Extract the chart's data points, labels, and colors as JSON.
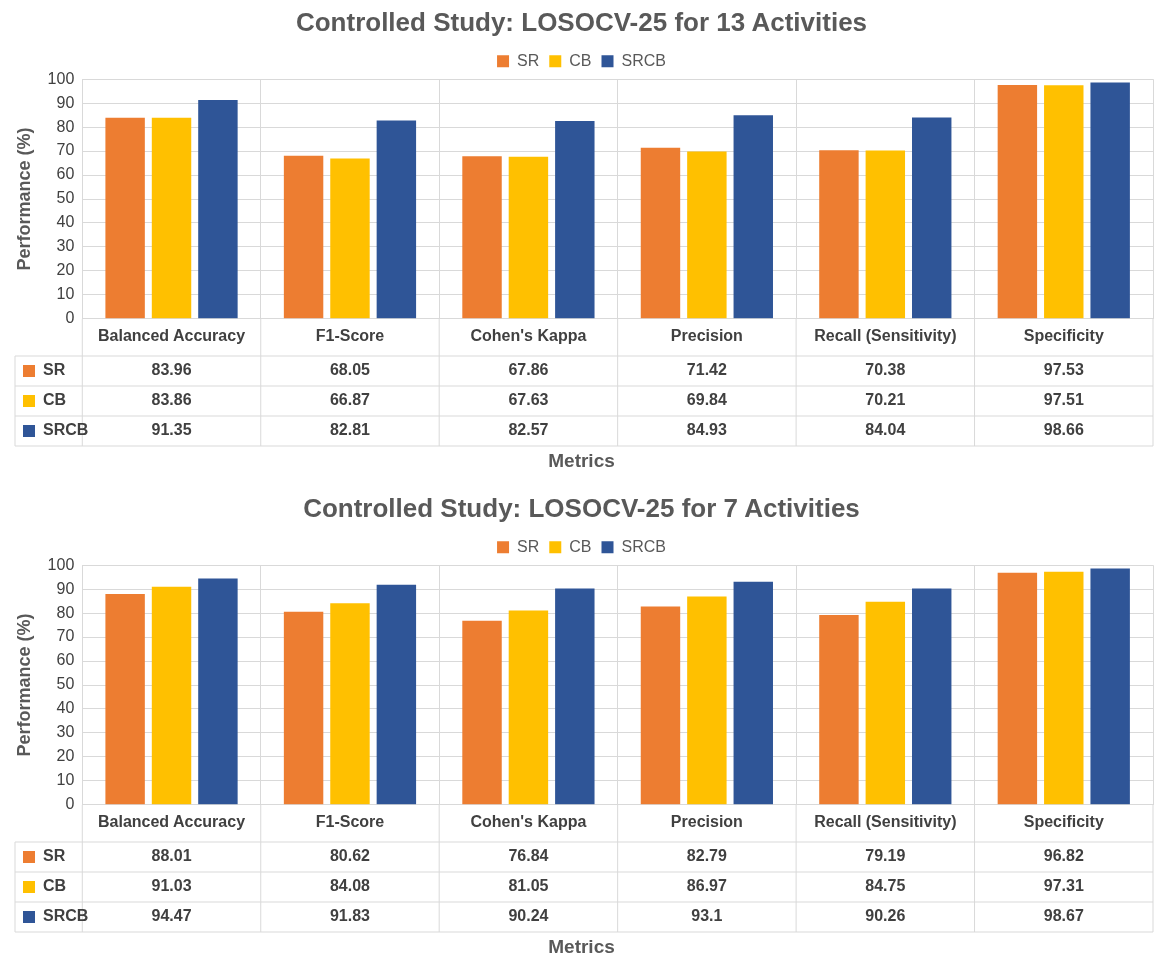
{
  "chart_data": [
    {
      "type": "bar",
      "title": "Controlled Study: LOSOCV-25 for 13 Activities",
      "xlabel": "Metrics",
      "ylabel": "Performance (%)",
      "categories": [
        "Balanced Accuracy",
        "F1-Score",
        "Cohen's Kappa",
        "Precision",
        "Recall (Sensitivity)",
        "Specificity"
      ],
      "series": [
        {
          "name": "SR",
          "color": "#ed7d31",
          "values": [
            83.96,
            68.05,
            67.86,
            71.42,
            70.38,
            97.53
          ]
        },
        {
          "name": "CB",
          "color": "#ffc000",
          "values": [
            83.86,
            66.87,
            67.63,
            69.84,
            70.21,
            97.51
          ]
        },
        {
          "name": "SRCB",
          "color": "#2f5597",
          "values": [
            91.35,
            82.81,
            82.57,
            84.93,
            84.04,
            98.66
          ]
        }
      ],
      "ylim": [
        0,
        100
      ],
      "yticks": [
        0,
        10,
        20,
        30,
        40,
        50,
        60,
        70,
        80,
        90,
        100
      ],
      "grid": true,
      "legend": "top",
      "data_labels": true
    },
    {
      "type": "bar",
      "title": "Controlled Study: LOSOCV-25 for 7 Activities",
      "xlabel": "Metrics",
      "ylabel": "Performance (%)",
      "categories": [
        "Balanced Accuracy",
        "F1-Score",
        "Cohen's Kappa",
        "Precision",
        "Recall (Sensitivity)",
        "Specificity"
      ],
      "series": [
        {
          "name": "SR",
          "color": "#ed7d31",
          "values": [
            88.01,
            80.62,
            76.84,
            82.79,
            79.19,
            96.82
          ]
        },
        {
          "name": "CB",
          "color": "#ffc000",
          "values": [
            91.03,
            84.08,
            81.05,
            86.97,
            84.75,
            97.31
          ]
        },
        {
          "name": "SRCB",
          "color": "#2f5597",
          "values": [
            94.47,
            91.83,
            90.24,
            93.1,
            90.26,
            98.67
          ]
        }
      ],
      "ylim": [
        0,
        100
      ],
      "yticks": [
        0,
        10,
        20,
        30,
        40,
        50,
        60,
        70,
        80,
        90,
        100
      ],
      "grid": true,
      "legend": "top",
      "data_labels": true
    }
  ]
}
